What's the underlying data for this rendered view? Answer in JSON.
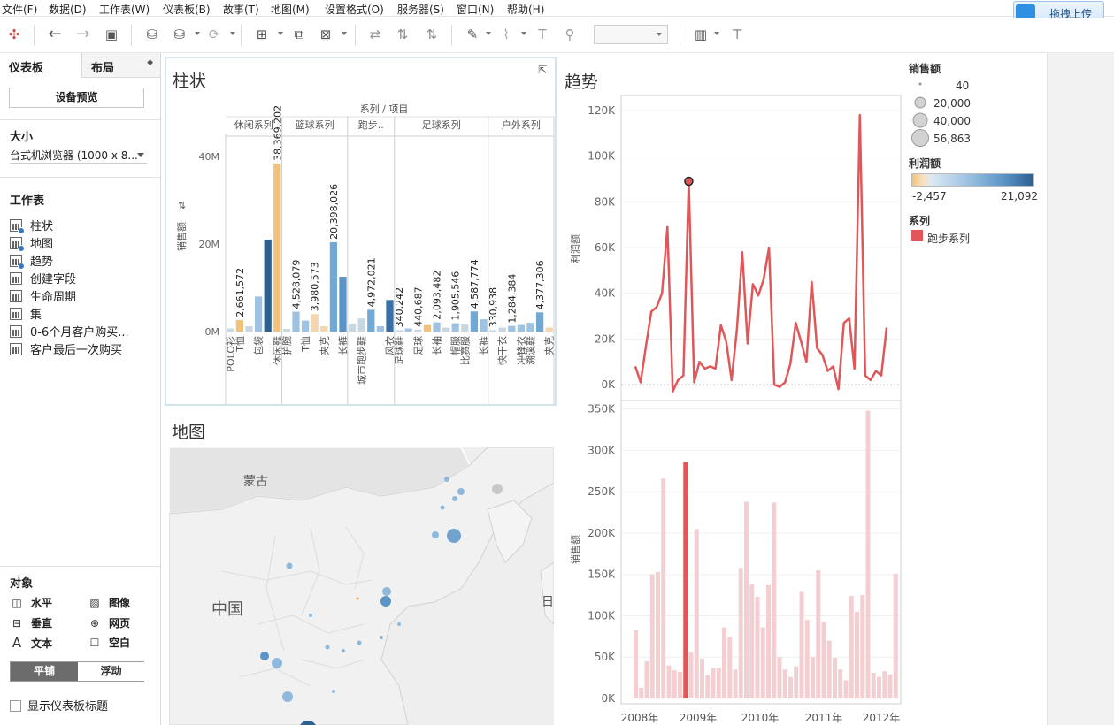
{
  "menu": [
    "文件(F)",
    "数据(D)",
    "工作表(W)",
    "仪表板(B)",
    "故事(T)",
    "地图(M)",
    "设置格式(O)",
    "服务器(S)",
    "窗口(N)",
    "帮助(H)"
  ],
  "upload_button": "拖拽上传",
  "left_panel": {
    "tab_dashboard": "仪表板",
    "tab_layout": "布局",
    "device_preview": "设备预览",
    "size_title": "大小",
    "size_value": "台式机浏览器 (1000 x 8...",
    "worksheets_title": "工作表",
    "worksheets": [
      {
        "label": "柱状",
        "in_use": true
      },
      {
        "label": "地图",
        "in_use": true
      },
      {
        "label": "趋势",
        "in_use": true
      },
      {
        "label": "创建字段",
        "in_use": false
      },
      {
        "label": "生命周期",
        "in_use": false
      },
      {
        "label": "集",
        "in_use": false
      },
      {
        "label": "0-6个月客户购买...",
        "in_use": false
      },
      {
        "label": "客户最后一次购买",
        "in_use": false
      }
    ],
    "objects_title": "对象",
    "objects": [
      {
        "label": "水平",
        "icon": "horizontal-icon"
      },
      {
        "label": "图像",
        "icon": "image-icon"
      },
      {
        "label": "垂直",
        "icon": "vertical-icon"
      },
      {
        "label": "网页",
        "icon": "globe-icon"
      },
      {
        "label": "文本",
        "icon": "text-icon"
      },
      {
        "label": "空白",
        "icon": "blank-icon"
      }
    ],
    "tiled": "平铺",
    "floating": "浮动",
    "show_title": "显示仪表板标题"
  },
  "sheets": {
    "bar_title": "柱状",
    "map_title": "地图",
    "trend_title": "趋势"
  },
  "map": {
    "labels": [
      "蒙古",
      "中国",
      "日"
    ]
  },
  "legend": {
    "size_title": "销售额",
    "size_values": [
      "40",
      "20,000",
      "40,000",
      "56,863"
    ],
    "color_title": "利润额",
    "color_min": "-2,457",
    "color_max": "21,092",
    "series_title": "系列",
    "series_item": "跑步系列",
    "series_color": "#e15759"
  },
  "chart_data": [
    {
      "type": "bar",
      "header_title": "系列 / 项目",
      "ylabel": "销售额",
      "yticks": [
        "0M",
        "20M",
        "40M"
      ],
      "ylim": [
        0,
        45000000
      ],
      "groups": [
        {
          "name": "休闲系列",
          "items": [
            {
              "label": "POLO衫",
              "value": 700000,
              "color": "#c9d7e3"
            },
            {
              "label": "T恤",
              "value": 2661572,
              "color": "#f1c27d",
              "data_label": "2,661,572"
            },
            {
              "label": "",
              "value": 1200000,
              "color": "#c9d7e3"
            },
            {
              "label": "包袋",
              "value": 8000000,
              "color": "#9ec3e2"
            },
            {
              "label": "",
              "value": 21000000,
              "color": "#2d5f8f"
            },
            {
              "label": "休闲鞋",
              "value": 38369202,
              "color": "#f1c27d",
              "data_label": "38,369,202"
            }
          ]
        },
        {
          "name": "篮球系列",
          "items": [
            {
              "label": "护腕",
              "value": 600000,
              "color": "#c9d7e3"
            },
            {
              "label": "",
              "value": 4528079,
              "color": "#9ec3e2",
              "data_label": "4,528,079"
            },
            {
              "label": "T恤",
              "value": 2500000,
              "color": "#9ec3e2"
            },
            {
              "label": "",
              "value": 3980573,
              "color": "#f3d5b0",
              "data_label": "3,980,573"
            },
            {
              "label": "夹克",
              "value": 1200000,
              "color": "#f3d5b0"
            },
            {
              "label": "",
              "value": 20398026,
              "color": "#72a8d4",
              "data_label": "20,398,026"
            },
            {
              "label": "长裤",
              "value": 12500000,
              "color": "#5b95c8"
            }
          ]
        },
        {
          "name": "跑步..",
          "items": [
            {
              "label": "",
              "value": 1800000,
              "color": "#c9d7e3"
            },
            {
              "label": "城市跑步鞋",
              "value": 3000000,
              "color": "#c9d7e3"
            },
            {
              "label": "",
              "value": 4972021,
              "color": "#72a8d4",
              "data_label": "4,972,021"
            },
            {
              "label": "",
              "value": 1200000,
              "color": "#9ec3e2"
            },
            {
              "label": "风衣",
              "value": 7200000,
              "color": "#3a6fa3"
            }
          ]
        },
        {
          "name": "足球系列",
          "items": [
            {
              "label": "足球鞋",
              "value": 340242,
              "color": "#c9d7e3",
              "data_label": "340,242"
            },
            {
              "label": "",
              "value": 700000,
              "color": "#9ec3e2"
            },
            {
              "label": "足球",
              "value": 440687,
              "color": "#c9d7e3",
              "data_label": "440,687"
            },
            {
              "label": "",
              "value": 1500000,
              "color": "#f1c27d"
            },
            {
              "label": "长袖",
              "value": 2093482,
              "color": "#9ec3e2",
              "data_label": "2,093,482"
            },
            {
              "label": "",
              "value": 900000,
              "color": "#c9d7e3"
            },
            {
              "label": "帽服",
              "value": 1905546,
              "color": "#9ec3e2",
              "data_label": "1,905,546"
            },
            {
              "label": "比赛服",
              "value": 1600000,
              "color": "#c9d7e3"
            },
            {
              "label": "",
              "value": 4587774,
              "color": "#72a8d4",
              "data_label": "4,587,774"
            },
            {
              "label": "长裤",
              "value": 2800000,
              "color": "#9ec3e2"
            }
          ]
        },
        {
          "name": "户外系列",
          "items": [
            {
              "label": "",
              "value": 330938,
              "color": "#c9d7e3",
              "data_label": "330,938"
            },
            {
              "label": "快干衣",
              "value": 900000,
              "color": "#c9d7e3"
            },
            {
              "label": "",
              "value": 1284384,
              "color": "#9ec3e2",
              "data_label": "1,284,384"
            },
            {
              "label": "冲锋衣",
              "value": 1500000,
              "color": "#9ec3e2"
            },
            {
              "label": "溯溪鞋",
              "value": 2000000,
              "color": "#9ec3e2"
            },
            {
              "label": "",
              "value": 4377306,
              "color": "#72a8d4",
              "data_label": "4,377,306"
            },
            {
              "label": "夹克",
              "value": 900000,
              "color": "#f3d5b0"
            }
          ]
        }
      ]
    },
    {
      "type": "line",
      "ylabel": "利润额",
      "yticks": [
        "0K",
        "20K",
        "40K",
        "60K",
        "80K",
        "100K",
        "120K"
      ],
      "ylim": [
        -5000,
        125000
      ],
      "series": [
        {
          "name": "跑步系列",
          "color": "#e15759",
          "values": [
            8000,
            1000,
            17000,
            32000,
            34000,
            40000,
            69000,
            -3000,
            2000,
            4000,
            89000,
            1000,
            10000,
            7000,
            8000,
            7000,
            26000,
            19000,
            2000,
            24000,
            58000,
            18000,
            44000,
            39000,
            46000,
            60000,
            0,
            -1000,
            1000,
            9000,
            27000,
            19000,
            10000,
            45000,
            16000,
            13000,
            6000,
            8000,
            -2000,
            27000,
            29000,
            7000,
            118000,
            4000,
            2000,
            6000,
            4000,
            25000
          ]
        }
      ],
      "highlight_index": 10
    },
    {
      "type": "bar",
      "ylabel": "销售额",
      "yticks": [
        "0K",
        "50K",
        "100K",
        "150K",
        "200K",
        "250K",
        "300K",
        "350K"
      ],
      "ylim": [
        0,
        355000
      ],
      "xticks": [
        "2008年",
        "2009年",
        "2010年",
        "2011年",
        "2012年"
      ],
      "series": [
        {
          "name": "跑步系列",
          "color": "#f4cfd1",
          "highlight_color": "#e15759",
          "values": [
            83000,
            13000,
            45000,
            150000,
            153000,
            266000,
            40000,
            34000,
            32000,
            286000,
            56000,
            205000,
            48000,
            28000,
            37000,
            37000,
            86000,
            75000,
            35000,
            158000,
            238000,
            138000,
            123000,
            86000,
            137000,
            237000,
            50000,
            35000,
            26000,
            39000,
            129000,
            95000,
            50000,
            155000,
            93000,
            70000,
            49000,
            35000,
            22000,
            124000,
            105000,
            125000,
            348000,
            31000,
            26000,
            33000,
            29000,
            151000
          ]
        }
      ],
      "highlight_index": 9
    }
  ]
}
